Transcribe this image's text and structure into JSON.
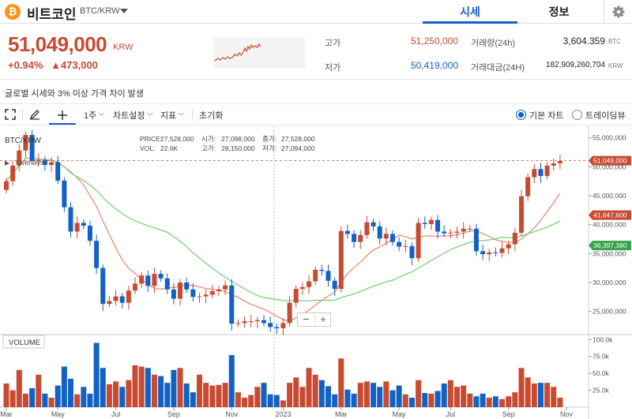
{
  "header": {
    "coin_symbol": "₿",
    "coin_name": "비트코인",
    "pair": "BTC/KRW",
    "tabs": [
      {
        "label": "시세"
      },
      {
        "label": "정보"
      }
    ]
  },
  "ticker": {
    "price": "51,049,000",
    "unit": "KRW",
    "change_pct": "+0.94%",
    "change_amt": "▲473,000",
    "high_label": "고가",
    "high_value": "51,250,000",
    "low_label": "저가",
    "low_value": "50,419,000",
    "volume_label": "거래량(24h)",
    "volume_value": "3,604.359",
    "volume_unit": "BTC",
    "amount_label": "거래대금(24H)",
    "amount_value": "182,909,260,704",
    "amount_unit": "KRW"
  },
  "notice": "글로벌 시세와 3% 이상 가격 차이 발생",
  "toolbar": {
    "interval": "1주",
    "chart_settings": "차트설정",
    "indicators": "지표",
    "reset": "초기화",
    "basic_chart": "기본 차트",
    "tradingview": "트레이딩뷰"
  },
  "colors": {
    "up": "#c84a31",
    "down": "#1261c4",
    "ma_short": "#e8836b",
    "ma_long": "#6fcf6f"
  },
  "chart_data": {
    "type": "candlestick",
    "legend_symbol": "BTC/KRW",
    "legend_overlay": "Overlays",
    "info": {
      "price_label": "PRICE:",
      "price": "27,528,000",
      "vol_label": "VOL:",
      "vol": "22.6K",
      "open_label": "시가:",
      "open": "27,098,000",
      "high_label": "고가:",
      "high": "28,150,000",
      "close_label": "종가:",
      "close": "27,528,000",
      "low_label": "저가:",
      "low": "27,094,000"
    },
    "y_ticks": [
      "55,000,000",
      "50,000,000",
      "45,000,000",
      "40,000,000",
      "35,000,000",
      "30,000,000",
      "25,000,000"
    ],
    "y_range": [
      21000000,
      57000000
    ],
    "price_tags": [
      {
        "label": "51,049,000",
        "value": 51049000,
        "color": "#c84a31"
      },
      {
        "label": "41,647,600",
        "value": 41647600,
        "color": "#c84a31"
      },
      {
        "label": "36,397,380",
        "value": 36397380,
        "color": "#37a34a"
      }
    ],
    "x_ticks": [
      {
        "label": "Mar",
        "i": 0
      },
      {
        "label": "May",
        "i": 8
      },
      {
        "label": "Jul",
        "i": 17
      },
      {
        "label": "Sep",
        "i": 26
      },
      {
        "label": "Nov",
        "i": 35
      },
      {
        "label": "2023",
        "i": 43
      },
      {
        "label": "Mar",
        "i": 52
      },
      {
        "label": "May",
        "i": 61
      },
      {
        "label": "Jul",
        "i": 69
      },
      {
        "label": "Sep",
        "i": 78
      },
      {
        "label": "Nov",
        "i": 87
      }
    ],
    "volume_label": "VOLUME",
    "volume_ticks": [
      {
        "label": "100.0k",
        "v": 100
      },
      {
        "label": "75.0k",
        "v": 75
      },
      {
        "label": "50.0k",
        "v": 50
      },
      {
        "label": "25.0k",
        "v": 25
      }
    ],
    "closes": [
      47.5,
      50.2,
      52.8,
      55.5,
      51.0,
      51.2,
      50.3,
      50.8,
      47.6,
      43.0,
      38.8,
      40.3,
      39.8,
      37.2,
      32.5,
      26.3,
      26.8,
      27.6,
      26.5,
      28.6,
      29.8,
      31.2,
      29.4,
      31.5,
      30.7,
      28.8,
      27.2,
      30.0,
      28.8,
      27.5,
      27.6,
      27.9,
      28.5,
      28.8,
      29.5,
      22.9,
      23.0,
      23.3,
      23.3,
      23.5,
      23.0,
      22.3,
      22.1,
      23.0,
      26.5,
      28.9,
      29.2,
      30.2,
      32.2,
      32.0,
      30.3,
      28.9,
      38.9,
      38.4,
      37.0,
      38.2,
      40.4,
      39.7,
      37.6,
      38.4,
      37.0,
      36.2,
      36.3,
      34.2,
      40.3,
      40.1,
      40.8,
      38.8,
      38.5,
      38.6,
      38.8,
      39.3,
      39.3,
      35.4,
      34.9,
      35.2,
      35.1,
      35.9,
      36.6,
      38.6,
      44.9,
      48.2,
      49.6,
      48.4,
      50.2,
      50.6,
      51.0
    ],
    "volumes": [
      35,
      25,
      55,
      20,
      28,
      48,
      20,
      14,
      32,
      60,
      42,
      19,
      30,
      20,
      95,
      58,
      34,
      38,
      30,
      40,
      62,
      60,
      58,
      48,
      46,
      36,
      55,
      58,
      35,
      22,
      48,
      36,
      32,
      33,
      36,
      77,
      22,
      14,
      18,
      30,
      36,
      19,
      18,
      10,
      36,
      44,
      30,
      58,
      48,
      40,
      31,
      19,
      72,
      26,
      20,
      36,
      38,
      36,
      30,
      38,
      25,
      32,
      19,
      14,
      40,
      21,
      20,
      24,
      35,
      40,
      30,
      32,
      20,
      16,
      20,
      14,
      16,
      12,
      16,
      22,
      58,
      44,
      35,
      36,
      36,
      30,
      14
    ]
  }
}
